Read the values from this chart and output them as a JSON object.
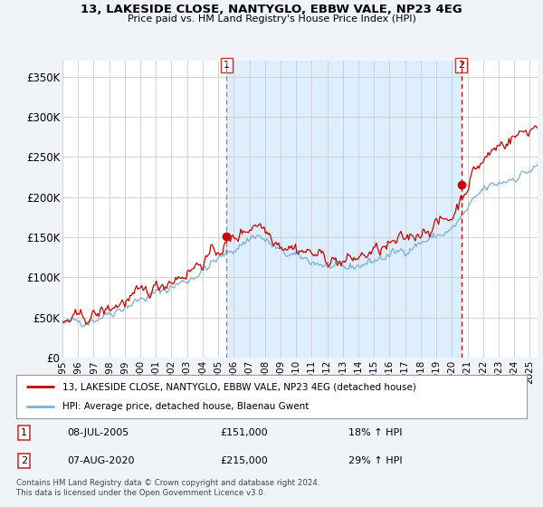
{
  "title": "13, LAKESIDE CLOSE, NANTYGLO, EBBW VALE, NP23 4EG",
  "subtitle": "Price paid vs. HM Land Registry's House Price Index (HPI)",
  "legend_line1": "13, LAKESIDE CLOSE, NANTYGLO, EBBW VALE, NP23 4EG (detached house)",
  "legend_line2": "HPI: Average price, detached house, Blaenau Gwent",
  "annotation1_label": "1",
  "annotation1_date": "08-JUL-2005",
  "annotation1_price": "£151,000",
  "annotation1_change": "18% ↑ HPI",
  "annotation2_label": "2",
  "annotation2_date": "07-AUG-2020",
  "annotation2_price": "£215,000",
  "annotation2_change": "29% ↑ HPI",
  "footer": "Contains HM Land Registry data © Crown copyright and database right 2024.\nThis data is licensed under the Open Government Licence v3.0.",
  "price_color": "#cc0000",
  "hpi_color": "#7bafd4",
  "shade_color": "#ddeeff",
  "background_color": "#f0f4f8",
  "plot_bg_color": "#ffffff",
  "grid_color": "#cccccc",
  "ylim": [
    0,
    370000
  ],
  "yticks": [
    0,
    50000,
    100000,
    150000,
    200000,
    250000,
    300000,
    350000
  ],
  "ytick_labels": [
    "£0",
    "£50K",
    "£100K",
    "£150K",
    "£200K",
    "£250K",
    "£300K",
    "£350K"
  ],
  "sale1_x": 2005.54,
  "sale1_y": 151000,
  "sale2_x": 2020.6,
  "sale2_y": 215000,
  "xmin": 1995.0,
  "xmax": 2025.5
}
